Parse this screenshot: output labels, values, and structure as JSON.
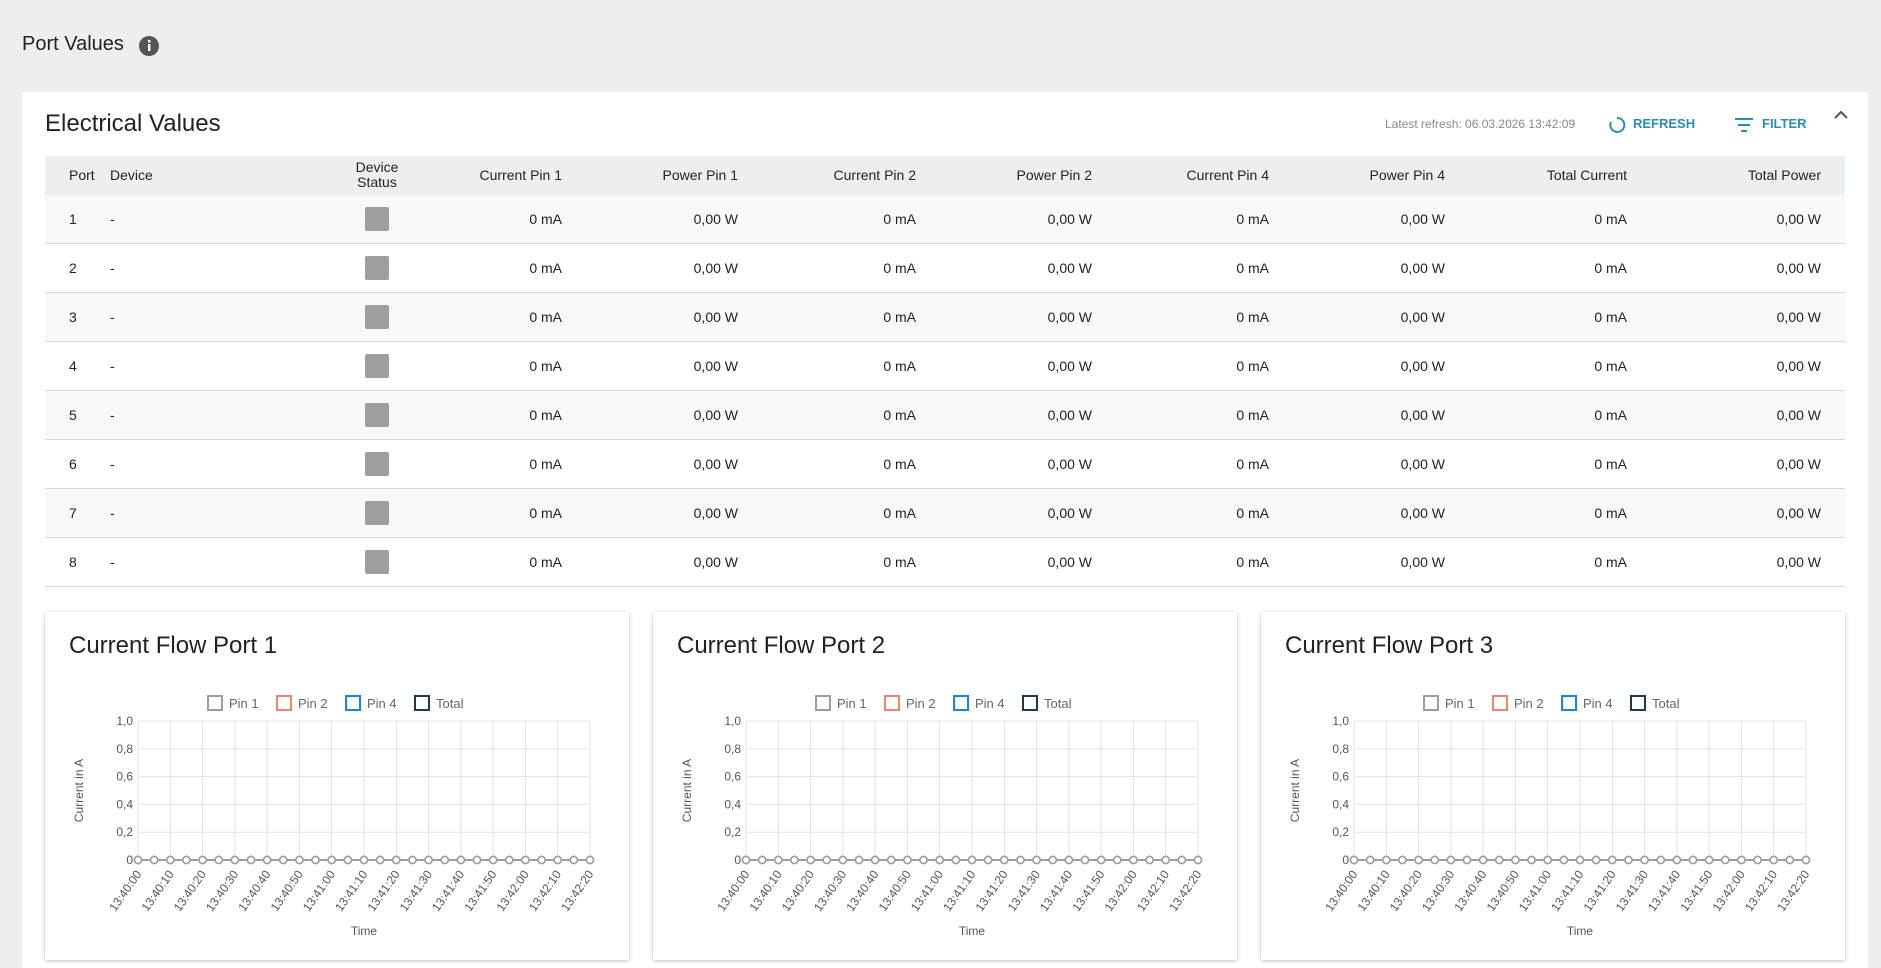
{
  "header": {
    "title": "Port Values"
  },
  "panel": {
    "title": "Electrical Values",
    "latest_refresh": "Latest refresh: 06.03.2026 13:42:09",
    "refresh": "REFRESH",
    "filter": "FILTER"
  },
  "table": {
    "columns": [
      "Port",
      "Device",
      "Device Status",
      "Current Pin 1",
      "Power Pin 1",
      "Current Pin 2",
      "Power Pin 2",
      "Current Pin 4",
      "Power Pin 4",
      "Total Current",
      "Total Power"
    ],
    "rows": [
      [
        "1",
        "-",
        null,
        "0 mA",
        "0,00 W",
        "0 mA",
        "0,00 W",
        "0 mA",
        "0,00 W",
        "0 mA",
        "0,00 W"
      ],
      [
        "2",
        "-",
        null,
        "0 mA",
        "0,00 W",
        "0 mA",
        "0,00 W",
        "0 mA",
        "0,00 W",
        "0 mA",
        "0,00 W"
      ],
      [
        "3",
        "-",
        null,
        "0 mA",
        "0,00 W",
        "0 mA",
        "0,00 W",
        "0 mA",
        "0,00 W",
        "0 mA",
        "0,00 W"
      ],
      [
        "4",
        "-",
        null,
        "0 mA",
        "0,00 W",
        "0 mA",
        "0,00 W",
        "0 mA",
        "0,00 W",
        "0 mA",
        "0,00 W"
      ],
      [
        "5",
        "-",
        null,
        "0 mA",
        "0,00 W",
        "0 mA",
        "0,00 W",
        "0 mA",
        "0,00 W",
        "0 mA",
        "0,00 W"
      ],
      [
        "6",
        "-",
        null,
        "0 mA",
        "0,00 W",
        "0 mA",
        "0,00 W",
        "0 mA",
        "0,00 W",
        "0 mA",
        "0,00 W"
      ],
      [
        "7",
        "-",
        null,
        "0 mA",
        "0,00 W",
        "0 mA",
        "0,00 W",
        "0 mA",
        "0,00 W",
        "0 mA",
        "0,00 W"
      ],
      [
        "8",
        "-",
        null,
        "0 mA",
        "0,00 W",
        "0 mA",
        "0,00 W",
        "0 mA",
        "0,00 W",
        "0 mA",
        "0,00 W"
      ]
    ]
  },
  "chart_data": [
    {
      "type": "line",
      "title": "Current Flow Port 1",
      "y_label": "Current in A",
      "x_label": "Time",
      "categories": [
        "13:40:00",
        null,
        "13:40:10",
        null,
        "13:40:20",
        null,
        "13:40:30",
        null,
        "13:40:40",
        null,
        "13:40:50",
        null,
        "13:41:00",
        null,
        "13:41:10",
        null,
        "13:41:20",
        null,
        "13:41:30",
        null,
        "13:41:40",
        null,
        "13:41:50",
        null,
        "13:42:00",
        null,
        "13:42:10",
        null,
        "13:42:20"
      ],
      "ylim": [
        0,
        1
      ],
      "yticks": [
        0,
        {
          "value": 0.2,
          "label": "0,2"
        },
        {
          "value": 0.4,
          "label": "0,4"
        },
        {
          "value": 0.6,
          "label": "0,6"
        },
        {
          "value": 0.8,
          "label": "0,8"
        },
        {
          "value": 1,
          "label": "1,0"
        }
      ],
      "grid": true,
      "series": [
        {
          "name": "Pin 1",
          "color": "#9e9e9e",
          "values": [
            0,
            0,
            0,
            0,
            0,
            0,
            0,
            0,
            0,
            0,
            0,
            0,
            0,
            0,
            0,
            0,
            0,
            0,
            0,
            0,
            0,
            0,
            0,
            0,
            0,
            0,
            0,
            0,
            0
          ]
        },
        {
          "name": "Pin 2",
          "color": "#f4836b",
          "values": [
            0,
            0,
            0,
            0,
            0,
            0,
            0,
            0,
            0,
            0,
            0,
            0,
            0,
            0,
            0,
            0,
            0,
            0,
            0,
            0,
            0,
            0,
            0,
            0,
            0,
            0,
            0,
            0,
            0
          ]
        },
        {
          "name": "Pin 4",
          "color": "#1e88d8",
          "values": [
            0,
            0,
            0,
            0,
            0,
            0,
            0,
            0,
            0,
            0,
            0,
            0,
            0,
            0,
            0,
            0,
            0,
            0,
            0,
            0,
            0,
            0,
            0,
            0,
            0,
            0,
            0,
            0,
            0
          ]
        },
        {
          "name": "Total",
          "color": "#1b3a57",
          "values": [
            0,
            0,
            0,
            0,
            0,
            0,
            0,
            0,
            0,
            0,
            0,
            0,
            0,
            0,
            0,
            0,
            0,
            0,
            0,
            0,
            0,
            0,
            0,
            0,
            0,
            0,
            0,
            0,
            0
          ]
        }
      ]
    },
    {
      "type": "line",
      "title": "Current Flow Port 2",
      "y_label": "Current in A",
      "x_label": "Time",
      "categories": [
        "13:40:00",
        null,
        "13:40:10",
        null,
        "13:40:20",
        null,
        "13:40:30",
        null,
        "13:40:40",
        null,
        "13:40:50",
        null,
        "13:41:00",
        null,
        "13:41:10",
        null,
        "13:41:20",
        null,
        "13:41:30",
        null,
        "13:41:40",
        null,
        "13:41:50",
        null,
        "13:42:00",
        null,
        "13:42:10",
        null,
        "13:42:20"
      ],
      "ylim": [
        0,
        1
      ],
      "yticks": [
        0,
        {
          "value": 0.2,
          "label": "0,2"
        },
        {
          "value": 0.4,
          "label": "0,4"
        },
        {
          "value": 0.6,
          "label": "0,6"
        },
        {
          "value": 0.8,
          "label": "0,8"
        },
        {
          "value": 1,
          "label": "1,0"
        }
      ],
      "grid": true,
      "series": [
        {
          "name": "Pin 1",
          "color": "#9e9e9e",
          "values": [
            0,
            0,
            0,
            0,
            0,
            0,
            0,
            0,
            0,
            0,
            0,
            0,
            0,
            0,
            0,
            0,
            0,
            0,
            0,
            0,
            0,
            0,
            0,
            0,
            0,
            0,
            0,
            0,
            0
          ]
        },
        {
          "name": "Pin 2",
          "color": "#f4836b",
          "values": [
            0,
            0,
            0,
            0,
            0,
            0,
            0,
            0,
            0,
            0,
            0,
            0,
            0,
            0,
            0,
            0,
            0,
            0,
            0,
            0,
            0,
            0,
            0,
            0,
            0,
            0,
            0,
            0,
            0
          ]
        },
        {
          "name": "Pin 4",
          "color": "#1e88d8",
          "values": [
            0,
            0,
            0,
            0,
            0,
            0,
            0,
            0,
            0,
            0,
            0,
            0,
            0,
            0,
            0,
            0,
            0,
            0,
            0,
            0,
            0,
            0,
            0,
            0,
            0,
            0,
            0,
            0,
            0
          ]
        },
        {
          "name": "Total",
          "color": "#1b3a57",
          "values": [
            0,
            0,
            0,
            0,
            0,
            0,
            0,
            0,
            0,
            0,
            0,
            0,
            0,
            0,
            0,
            0,
            0,
            0,
            0,
            0,
            0,
            0,
            0,
            0,
            0,
            0,
            0,
            0,
            0
          ]
        }
      ]
    },
    {
      "type": "line",
      "title": "Current Flow Port 3",
      "y_label": "Current in A",
      "x_label": "Time",
      "categories": [
        "13:40:00",
        null,
        "13:40:10",
        null,
        "13:40:20",
        null,
        "13:40:30",
        null,
        "13:40:40",
        null,
        "13:40:50",
        null,
        "13:41:00",
        null,
        "13:41:10",
        null,
        "13:41:20",
        null,
        "13:41:30",
        null,
        "13:41:40",
        null,
        "13:41:50",
        null,
        "13:42:00",
        null,
        "13:42:10",
        null,
        "13:42:20"
      ],
      "ylim": [
        0,
        1
      ],
      "yticks": [
        0,
        {
          "value": 0.2,
          "label": "0,2"
        },
        {
          "value": 0.4,
          "label": "0,4"
        },
        {
          "value": 0.6,
          "label": "0,6"
        },
        {
          "value": 0.8,
          "label": "0,8"
        },
        {
          "value": 1,
          "label": "1,0"
        }
      ],
      "grid": true,
      "series": [
        {
          "name": "Pin 1",
          "color": "#9e9e9e",
          "values": [
            0,
            0,
            0,
            0,
            0,
            0,
            0,
            0,
            0,
            0,
            0,
            0,
            0,
            0,
            0,
            0,
            0,
            0,
            0,
            0,
            0,
            0,
            0,
            0,
            0,
            0,
            0,
            0,
            0
          ]
        },
        {
          "name": "Pin 2",
          "color": "#f4836b",
          "values": [
            0,
            0,
            0,
            0,
            0,
            0,
            0,
            0,
            0,
            0,
            0,
            0,
            0,
            0,
            0,
            0,
            0,
            0,
            0,
            0,
            0,
            0,
            0,
            0,
            0,
            0,
            0,
            0,
            0
          ]
        },
        {
          "name": "Pin 4",
          "color": "#1e88d8",
          "values": [
            0,
            0,
            0,
            0,
            0,
            0,
            0,
            0,
            0,
            0,
            0,
            0,
            0,
            0,
            0,
            0,
            0,
            0,
            0,
            0,
            0,
            0,
            0,
            0,
            0,
            0,
            0,
            0,
            0
          ]
        },
        {
          "name": "Total",
          "color": "#1b3a57",
          "values": [
            0,
            0,
            0,
            0,
            0,
            0,
            0,
            0,
            0,
            0,
            0,
            0,
            0,
            0,
            0,
            0,
            0,
            0,
            0,
            0,
            0,
            0,
            0,
            0,
            0,
            0,
            0,
            0,
            0
          ]
        }
      ]
    }
  ]
}
